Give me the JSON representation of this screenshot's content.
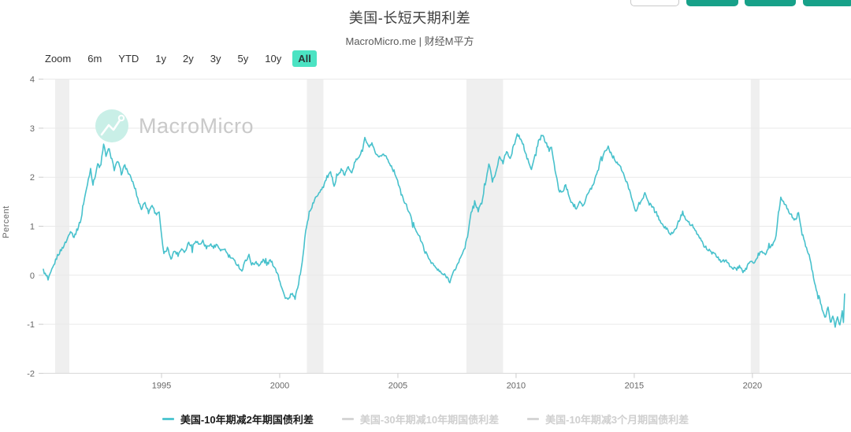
{
  "header": {
    "title": "美国-长短天期利差",
    "subtitle": "MacroMicro.me | 财经M平方"
  },
  "top_buttons": {
    "outline_border_color": "#c9c9c9",
    "solid_color": "#17a189",
    "buttons": [
      {
        "variant": "outline"
      },
      {
        "variant": "solid"
      },
      {
        "variant": "solid"
      },
      {
        "variant": "solid"
      }
    ]
  },
  "range_selector": {
    "label": "Zoom",
    "options": [
      "6m",
      "YTD",
      "1y",
      "2y",
      "3y",
      "5y",
      "10y",
      "All"
    ],
    "active": "All",
    "active_bg": "#4be3c3"
  },
  "watermark": {
    "text": "MacroMicro",
    "circle_color": "#c9efe7",
    "text_color": "#c9c9c9"
  },
  "chart_data": {
    "type": "line",
    "title": "美国-长短天期利差",
    "xlabel": "",
    "ylabel": "Percent",
    "ylim": [
      -2,
      4
    ],
    "yticks": [
      4,
      3,
      2,
      1,
      0,
      -1,
      -2
    ],
    "xlim": [
      1990,
      2024.17
    ],
    "xticks": [
      1995,
      2000,
      2005,
      2010,
      2015,
      2020
    ],
    "grid": true,
    "gridline_color": "#e9e9e9",
    "axisline_color": "#d7d7d7",
    "tick_label_color": "#666666",
    "recession_band_color": "#efefef",
    "recession_bands": [
      [
        1990.5,
        1991.1
      ],
      [
        2001.15,
        2001.85
      ],
      [
        2007.9,
        2009.45
      ],
      [
        2019.93,
        2020.3
      ]
    ],
    "legend_position": "bottom",
    "jitter": {
      "base": 0.035,
      "spike": 0.1
    },
    "series": [
      {
        "name": "美国-10年期减2年期国债利差",
        "color": "#47c1cc",
        "dash_color": "#52c7d1",
        "active": true,
        "label_color": "#1a1a1a",
        "points": [
          [
            1990.0,
            0.1
          ],
          [
            1990.2,
            -0.1
          ],
          [
            1990.4,
            0.15
          ],
          [
            1990.6,
            0.4
          ],
          [
            1990.8,
            0.55
          ],
          [
            1991.0,
            0.72
          ],
          [
            1991.15,
            0.92
          ],
          [
            1991.3,
            0.78
          ],
          [
            1991.45,
            0.95
          ],
          [
            1991.6,
            1.15
          ],
          [
            1991.7,
            1.45
          ],
          [
            1991.8,
            1.7
          ],
          [
            1991.9,
            1.95
          ],
          [
            1992.0,
            2.18
          ],
          [
            1992.1,
            1.85
          ],
          [
            1992.2,
            2.05
          ],
          [
            1992.3,
            2.28
          ],
          [
            1992.4,
            2.15
          ],
          [
            1992.55,
            2.66
          ],
          [
            1992.65,
            2.45
          ],
          [
            1992.75,
            2.55
          ],
          [
            1992.9,
            2.38
          ],
          [
            1993.0,
            2.15
          ],
          [
            1993.15,
            2.33
          ],
          [
            1993.3,
            2.08
          ],
          [
            1993.45,
            2.24
          ],
          [
            1993.6,
            2.08
          ],
          [
            1993.75,
            1.94
          ],
          [
            1993.9,
            1.74
          ],
          [
            1994.0,
            1.55
          ],
          [
            1994.15,
            1.35
          ],
          [
            1994.3,
            1.5
          ],
          [
            1994.45,
            1.28
          ],
          [
            1994.6,
            1.44
          ],
          [
            1994.75,
            1.25
          ],
          [
            1994.9,
            1.3
          ],
          [
            1995.0,
            0.8
          ],
          [
            1995.1,
            0.42
          ],
          [
            1995.25,
            0.55
          ],
          [
            1995.4,
            0.35
          ],
          [
            1995.55,
            0.5
          ],
          [
            1995.7,
            0.42
          ],
          [
            1995.85,
            0.55
          ],
          [
            1996.0,
            0.48
          ],
          [
            1996.15,
            0.68
          ],
          [
            1996.3,
            0.58
          ],
          [
            1996.45,
            0.72
          ],
          [
            1996.6,
            0.62
          ],
          [
            1996.75,
            0.7
          ],
          [
            1996.9,
            0.55
          ],
          [
            1997.05,
            0.65
          ],
          [
            1997.2,
            0.55
          ],
          [
            1997.35,
            0.62
          ],
          [
            1997.5,
            0.48
          ],
          [
            1997.65,
            0.55
          ],
          [
            1997.8,
            0.42
          ],
          [
            1997.95,
            0.35
          ],
          [
            1998.1,
            0.28
          ],
          [
            1998.25,
            0.2
          ],
          [
            1998.4,
            0.08
          ],
          [
            1998.55,
            0.3
          ],
          [
            1998.7,
            0.4
          ],
          [
            1998.85,
            0.18
          ],
          [
            1999.0,
            0.28
          ],
          [
            1999.15,
            0.2
          ],
          [
            1999.3,
            0.32
          ],
          [
            1999.45,
            0.22
          ],
          [
            1999.6,
            0.3
          ],
          [
            1999.75,
            0.2
          ],
          [
            1999.9,
            0.05
          ],
          [
            2000.05,
            -0.2
          ],
          [
            2000.2,
            -0.42
          ],
          [
            2000.35,
            -0.5
          ],
          [
            2000.5,
            -0.38
          ],
          [
            2000.65,
            -0.48
          ],
          [
            2000.8,
            -0.15
          ],
          [
            2000.95,
            0.25
          ],
          [
            2001.1,
            0.9
          ],
          [
            2001.25,
            1.25
          ],
          [
            2001.4,
            1.45
          ],
          [
            2001.55,
            1.6
          ],
          [
            2001.7,
            1.72
          ],
          [
            2001.85,
            1.82
          ],
          [
            2002.0,
            2.0
          ],
          [
            2002.15,
            2.08
          ],
          [
            2002.3,
            1.85
          ],
          [
            2002.45,
            2.02
          ],
          [
            2002.6,
            2.15
          ],
          [
            2002.75,
            2.05
          ],
          [
            2002.9,
            2.2
          ],
          [
            2003.05,
            2.12
          ],
          [
            2003.2,
            2.32
          ],
          [
            2003.35,
            2.42
          ],
          [
            2003.5,
            2.55
          ],
          [
            2003.6,
            2.8
          ],
          [
            2003.75,
            2.62
          ],
          [
            2003.9,
            2.67
          ],
          [
            2004.05,
            2.48
          ],
          [
            2004.2,
            2.38
          ],
          [
            2004.35,
            2.48
          ],
          [
            2004.5,
            2.42
          ],
          [
            2004.65,
            2.3
          ],
          [
            2004.8,
            2.15
          ],
          [
            2004.95,
            2.0
          ],
          [
            2005.1,
            1.72
          ],
          [
            2005.25,
            1.52
          ],
          [
            2005.4,
            1.38
          ],
          [
            2005.55,
            1.18
          ],
          [
            2005.7,
            1.0
          ],
          [
            2005.85,
            0.85
          ],
          [
            2006.0,
            0.68
          ],
          [
            2006.15,
            0.48
          ],
          [
            2006.3,
            0.35
          ],
          [
            2006.45,
            0.25
          ],
          [
            2006.6,
            0.15
          ],
          [
            2006.75,
            0.08
          ],
          [
            2006.9,
            0.02
          ],
          [
            2007.05,
            -0.02
          ],
          [
            2007.2,
            -0.12
          ],
          [
            2007.35,
            0.05
          ],
          [
            2007.5,
            0.2
          ],
          [
            2007.65,
            0.35
          ],
          [
            2007.8,
            0.55
          ],
          [
            2007.95,
            0.78
          ],
          [
            2008.1,
            1.28
          ],
          [
            2008.25,
            1.5
          ],
          [
            2008.4,
            1.32
          ],
          [
            2008.55,
            1.48
          ],
          [
            2008.7,
            1.85
          ],
          [
            2008.85,
            2.28
          ],
          [
            2009.0,
            1.92
          ],
          [
            2009.15,
            2.1
          ],
          [
            2009.3,
            2.45
          ],
          [
            2009.45,
            2.28
          ],
          [
            2009.6,
            2.55
          ],
          [
            2009.75,
            2.35
          ],
          [
            2009.9,
            2.65
          ],
          [
            2010.05,
            2.87
          ],
          [
            2010.2,
            2.78
          ],
          [
            2010.35,
            2.55
          ],
          [
            2010.5,
            2.35
          ],
          [
            2010.65,
            2.15
          ],
          [
            2010.8,
            2.45
          ],
          [
            2010.95,
            2.72
          ],
          [
            2011.1,
            2.86
          ],
          [
            2011.25,
            2.72
          ],
          [
            2011.4,
            2.55
          ],
          [
            2011.5,
            2.64
          ],
          [
            2011.65,
            2.15
          ],
          [
            2011.8,
            1.75
          ],
          [
            2011.95,
            1.68
          ],
          [
            2012.1,
            1.85
          ],
          [
            2012.25,
            1.58
          ],
          [
            2012.4,
            1.45
          ],
          [
            2012.55,
            1.38
          ],
          [
            2012.7,
            1.52
          ],
          [
            2012.85,
            1.42
          ],
          [
            2013.0,
            1.62
          ],
          [
            2013.15,
            1.75
          ],
          [
            2013.3,
            1.9
          ],
          [
            2013.45,
            2.15
          ],
          [
            2013.6,
            2.4
          ],
          [
            2013.75,
            2.52
          ],
          [
            2013.9,
            2.62
          ],
          [
            2014.05,
            2.45
          ],
          [
            2014.2,
            2.35
          ],
          [
            2014.35,
            2.25
          ],
          [
            2014.5,
            2.12
          ],
          [
            2014.65,
            1.92
          ],
          [
            2014.8,
            1.75
          ],
          [
            2014.95,
            1.5
          ],
          [
            2015.05,
            1.28
          ],
          [
            2015.2,
            1.45
          ],
          [
            2015.35,
            1.58
          ],
          [
            2015.45,
            1.65
          ],
          [
            2015.6,
            1.48
          ],
          [
            2015.75,
            1.42
          ],
          [
            2015.9,
            1.32
          ],
          [
            2016.05,
            1.15
          ],
          [
            2016.2,
            1.02
          ],
          [
            2016.35,
            0.95
          ],
          [
            2016.5,
            0.88
          ],
          [
            2016.62,
            0.82
          ],
          [
            2016.75,
            0.95
          ],
          [
            2016.9,
            1.12
          ],
          [
            2017.05,
            1.28
          ],
          [
            2017.2,
            1.15
          ],
          [
            2017.35,
            1.05
          ],
          [
            2017.5,
            0.95
          ],
          [
            2017.65,
            0.85
          ],
          [
            2017.8,
            0.75
          ],
          [
            2017.95,
            0.6
          ],
          [
            2018.1,
            0.54
          ],
          [
            2018.25,
            0.47
          ],
          [
            2018.4,
            0.42
          ],
          [
            2018.55,
            0.35
          ],
          [
            2018.7,
            0.28
          ],
          [
            2018.85,
            0.3
          ],
          [
            2019.0,
            0.22
          ],
          [
            2019.15,
            0.16
          ],
          [
            2019.3,
            0.11
          ],
          [
            2019.45,
            0.18
          ],
          [
            2019.6,
            0.05
          ],
          [
            2019.75,
            0.15
          ],
          [
            2019.9,
            0.3
          ],
          [
            2020.1,
            0.25
          ],
          [
            2020.25,
            0.42
          ],
          [
            2020.4,
            0.48
          ],
          [
            2020.55,
            0.45
          ],
          [
            2020.7,
            0.55
          ],
          [
            2020.85,
            0.62
          ],
          [
            2021.0,
            0.82
          ],
          [
            2021.1,
            1.25
          ],
          [
            2021.2,
            1.58
          ],
          [
            2021.35,
            1.48
          ],
          [
            2021.5,
            1.32
          ],
          [
            2021.65,
            1.22
          ],
          [
            2021.8,
            1.12
          ],
          [
            2021.95,
            1.28
          ],
          [
            2022.1,
            0.85
          ],
          [
            2022.25,
            0.62
          ],
          [
            2022.4,
            0.42
          ],
          [
            2022.55,
            0.05
          ],
          [
            2022.7,
            -0.3
          ],
          [
            2022.85,
            -0.48
          ],
          [
            2022.95,
            -0.72
          ],
          [
            2023.1,
            -0.88
          ],
          [
            2023.2,
            -0.62
          ],
          [
            2023.3,
            -0.95
          ],
          [
            2023.4,
            -0.85
          ],
          [
            2023.5,
            -1.02
          ],
          [
            2023.6,
            -0.82
          ],
          [
            2023.7,
            -1.05
          ],
          [
            2023.8,
            -0.75
          ],
          [
            2023.85,
            -0.95
          ],
          [
            2023.9,
            -0.38
          ]
        ]
      },
      {
        "name": "美国-30年期减10年期国债利差",
        "color": "#d5d5d5",
        "dash_color": "#d5d5d5",
        "active": false,
        "label_color": "#cfcfcf",
        "points": []
      },
      {
        "name": "美国-10年期减3个月期国债利差",
        "color": "#d5d5d5",
        "dash_color": "#d5d5d5",
        "active": false,
        "label_color": "#cfcfcf",
        "points": []
      }
    ]
  }
}
